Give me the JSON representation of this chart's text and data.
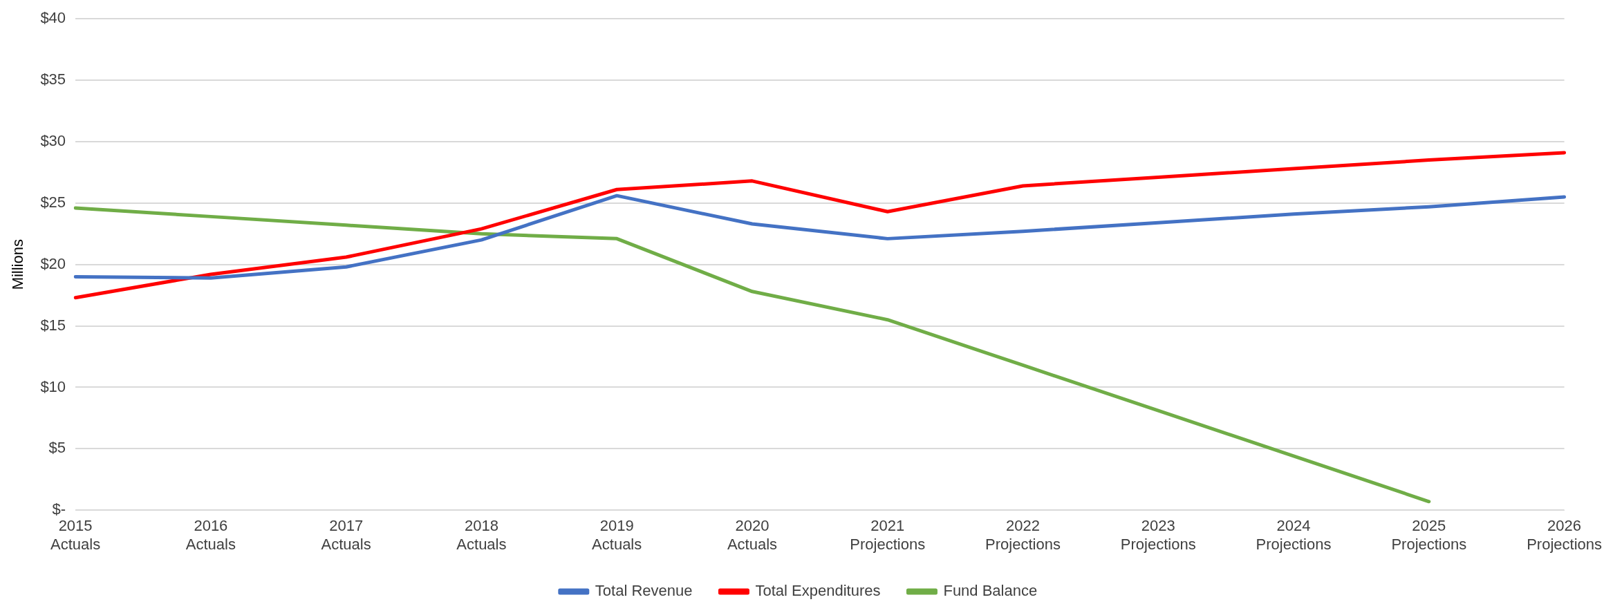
{
  "chart_data": {
    "type": "line",
    "ylabel": "Millions",
    "categories": [
      "2015\nActuals",
      "2016\nActuals",
      "2017\nActuals",
      "2018\nActuals",
      "2019\nActuals",
      "2020\nActuals",
      "2021\nProjections",
      "2022\nProjections",
      "2023\nProjections",
      "2024\nProjections",
      "2025\nProjections",
      "2026\nProjections"
    ],
    "series": [
      {
        "name": "Total Revenue",
        "color": "#4472c4",
        "values": [
          19.0,
          18.9,
          19.8,
          22.0,
          25.6,
          23.3,
          22.1,
          22.7,
          23.4,
          24.1,
          24.7,
          25.5
        ]
      },
      {
        "name": "Total Expenditures",
        "color": "#ff0000",
        "values": [
          17.3,
          19.2,
          20.6,
          22.9,
          26.1,
          26.8,
          24.3,
          26.4,
          27.1,
          27.8,
          28.5,
          29.1
        ]
      },
      {
        "name": "Fund Balance",
        "color": "#70ad47",
        "values": [
          24.6,
          23.9,
          23.2,
          22.5,
          22.1,
          17.8,
          15.5,
          11.8,
          8.1,
          4.4,
          0.7,
          null
        ]
      }
    ],
    "ylim": [
      0,
      40
    ],
    "yticks": [
      {
        "value": 0,
        "label": "$-"
      },
      {
        "value": 5,
        "label": "$5"
      },
      {
        "value": 10,
        "label": "$10"
      },
      {
        "value": 15,
        "label": "$15"
      },
      {
        "value": 20,
        "label": "$20"
      },
      {
        "value": 25,
        "label": "$25"
      },
      {
        "value": 30,
        "label": "$30"
      },
      {
        "value": 35,
        "label": "$35"
      },
      {
        "value": 40,
        "label": "$40"
      }
    ],
    "grid": "y",
    "legend": "bottom",
    "marker": "none",
    "line_style": "solid"
  }
}
